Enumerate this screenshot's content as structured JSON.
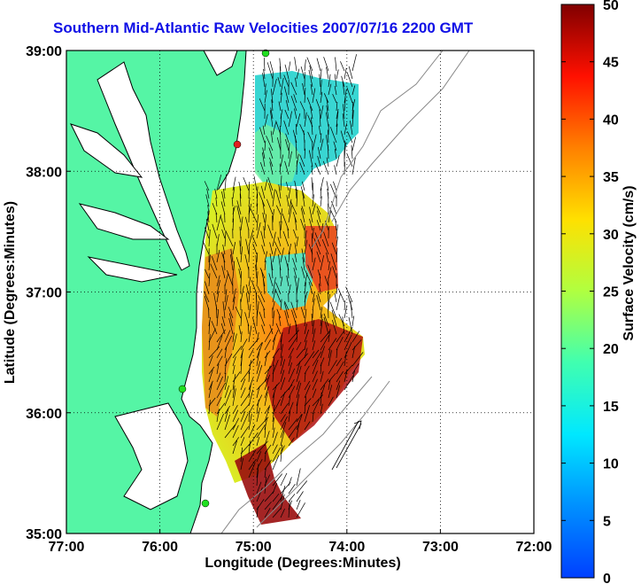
{
  "title": "Southern Mid-Atlantic Raw Velocities 2007/07/16 2200 GMT",
  "map": {
    "xlabel": "Longitude (Degrees:Minutes)",
    "ylabel": "Latitude (Degrees:Minutes)",
    "x_ticks": [
      "77:00",
      "76:00",
      "75:00",
      "74:00",
      "73:00",
      "72:00"
    ],
    "y_ticks": [
      "39:00",
      "38:00",
      "37:00",
      "36:00",
      "35:00"
    ],
    "lon_range": [
      -77,
      -72
    ],
    "lat_range": [
      35,
      39
    ],
    "land_color": "#55f5a5",
    "grid": true
  },
  "colorbar": {
    "label": "Surface Velocity (cm/s)",
    "ticks": [
      "50",
      "45",
      "40",
      "35",
      "30",
      "25",
      "20",
      "15",
      "10",
      "5",
      "0"
    ],
    "range": [
      0,
      50
    ],
    "colormap": "jet"
  }
}
